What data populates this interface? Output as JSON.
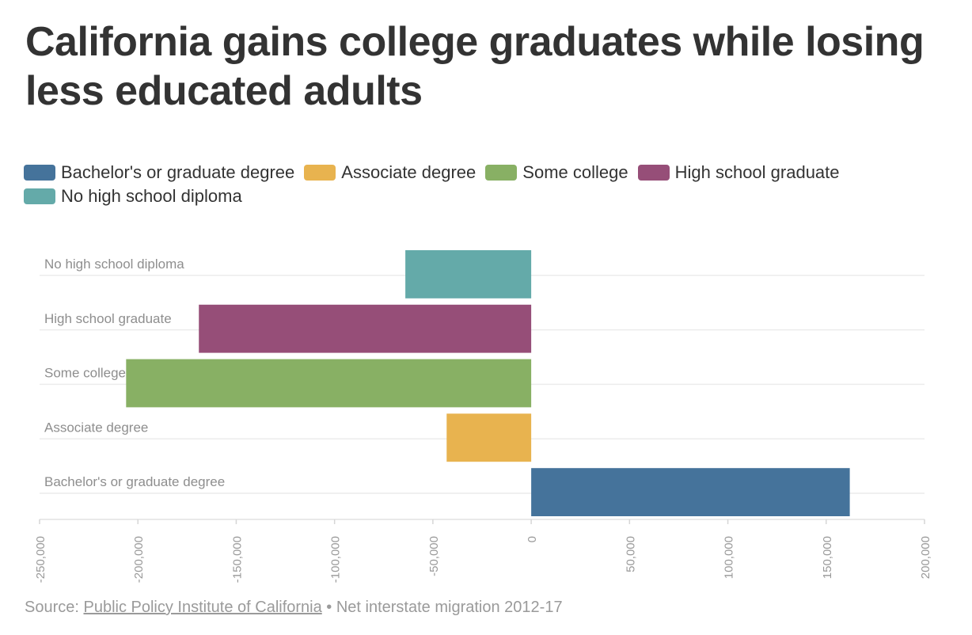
{
  "title": "California gains college graduates while losing less educated adults",
  "colors": {
    "Bachelor's or graduate degree": "#45739b",
    "Associate degree": "#e8b34f",
    "Some college": "#88b064",
    "High school graduate": "#964e78",
    "No high school diploma": "#64aaa9"
  },
  "legend": [
    "Bachelor's or graduate degree",
    "Associate degree",
    "Some college",
    "High school graduate",
    "No high school diploma"
  ],
  "chart_data": {
    "type": "bar",
    "orientation": "horizontal",
    "categories": [
      "No high school diploma",
      "High school graduate",
      "Some college",
      "Associate degree",
      "Bachelor's or graduate degree"
    ],
    "values": [
      -64000,
      -169000,
      -206000,
      -43000,
      162000
    ],
    "xlim": [
      -250000,
      200000
    ],
    "xticks": [
      -250000,
      -200000,
      -150000,
      -100000,
      -50000,
      0,
      50000,
      100000,
      150000,
      200000
    ],
    "xtick_labels": [
      "-250,000",
      "-200,000",
      "-150,000",
      "-100,000",
      "-50,000",
      "0",
      "50,000",
      "100,000",
      "150,000",
      "200,000"
    ],
    "grid": true,
    "legend_position": "top-left"
  },
  "source": {
    "prefix": "Source: ",
    "link": "Public Policy Institute of California",
    "suffix": " • Net interstate migration 2012-17"
  }
}
